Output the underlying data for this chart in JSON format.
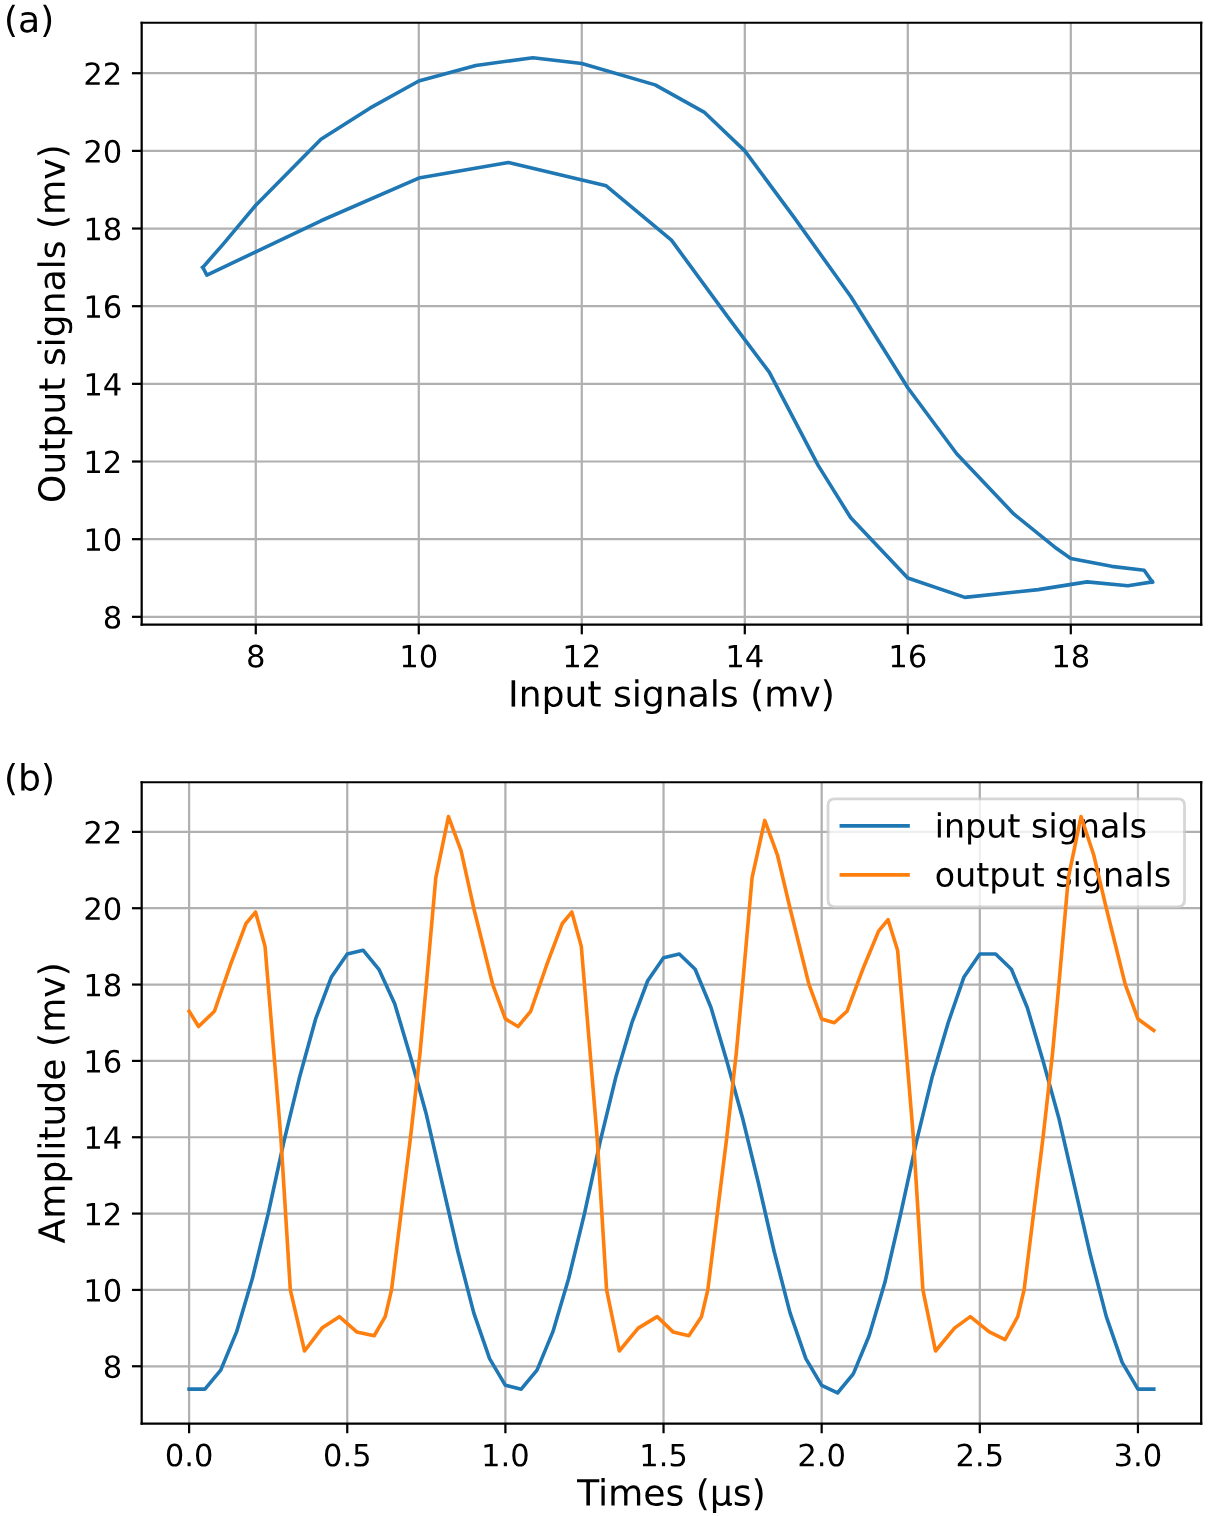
{
  "chart_data": [
    {
      "type": "line",
      "title": "(a)",
      "xlabel": "Input signals (mv)",
      "ylabel": "Output signals (mv)",
      "xlim": [
        6.6,
        19.6
      ],
      "ylim": [
        7.8,
        23.3
      ],
      "xticks": [
        8,
        10,
        12,
        14,
        16,
        18
      ],
      "yticks": [
        8,
        10,
        12,
        14,
        16,
        18,
        20,
        22
      ],
      "grid": true,
      "line_style": "solid",
      "series": [
        {
          "color": "#1f77b4",
          "x": [
            7.35,
            7.6,
            8.0,
            8.8,
            9.4,
            10.0,
            10.7,
            11.4,
            12.0,
            12.9,
            13.5,
            14.0,
            14.6,
            15.3,
            16.0,
            16.6,
            17.3,
            17.8,
            18.0,
            18.5,
            18.9,
            19.0
          ],
          "values": [
            17.0,
            17.6,
            18.6,
            20.3,
            21.1,
            21.8,
            22.2,
            22.4,
            22.25,
            21.7,
            21.0,
            20.0,
            18.3,
            16.25,
            13.9,
            12.2,
            10.65,
            9.8,
            9.5,
            9.3,
            9.2,
            8.9
          ]
        },
        {
          "color": "#1f77b4",
          "x": [
            7.35,
            7.4,
            8.0,
            8.8,
            10.0,
            11.1,
            12.3,
            13.1,
            13.8,
            14.3,
            14.9,
            15.3,
            16.0,
            16.7,
            17.6,
            18.2,
            18.7,
            19.0
          ],
          "values": [
            17.0,
            16.8,
            17.4,
            18.2,
            19.3,
            19.7,
            19.1,
            17.7,
            15.7,
            14.3,
            11.9,
            10.55,
            9.0,
            8.5,
            8.7,
            8.9,
            8.8,
            8.9
          ]
        }
      ]
    },
    {
      "type": "line",
      "title": "(b)",
      "xlabel": "Times (µs)",
      "ylabel": "Amplitude (mv)",
      "xlim": [
        -0.15,
        3.2
      ],
      "ylim": [
        6.5,
        23.3
      ],
      "xticks": [
        {
          "value": 0,
          "label": "0.0"
        },
        0.5,
        {
          "value": 1,
          "label": "1.0"
        },
        1.5,
        {
          "value": 2,
          "label": "2.0"
        },
        2.5,
        {
          "value": 3,
          "label": "3.0"
        }
      ],
      "yticks": [
        8,
        10,
        12,
        14,
        16,
        18,
        20,
        22
      ],
      "grid": true,
      "legend": "top right",
      "line_style": "solid",
      "series": [
        {
          "name": "input signals",
          "color": "#1f77b4",
          "x": [
            0.0,
            0.05,
            0.1,
            0.15,
            0.2,
            0.25,
            0.3,
            0.35,
            0.4,
            0.45,
            0.5,
            0.55,
            0.6,
            0.65,
            0.7,
            0.75,
            0.8,
            0.85,
            0.9,
            0.95,
            1.0,
            1.05,
            1.1,
            1.15,
            1.2,
            1.25,
            1.3,
            1.35,
            1.4,
            1.45,
            1.5,
            1.55,
            1.6,
            1.65,
            1.7,
            1.75,
            1.8,
            1.85,
            1.9,
            1.95,
            2.0,
            2.05,
            2.1,
            2.15,
            2.2,
            2.25,
            2.3,
            2.35,
            2.4,
            2.45,
            2.5,
            2.55,
            2.6,
            2.65,
            2.7,
            2.75,
            2.8,
            2.85,
            2.9,
            2.95,
            3.0,
            3.05
          ],
          "values": [
            7.4,
            7.4,
            7.9,
            8.9,
            10.3,
            12.0,
            13.9,
            15.6,
            17.1,
            18.2,
            18.8,
            18.9,
            18.4,
            17.5,
            16.1,
            14.6,
            12.8,
            11.0,
            9.4,
            8.2,
            7.5,
            7.4,
            7.9,
            8.9,
            10.3,
            12.0,
            13.9,
            15.6,
            17.0,
            18.1,
            18.7,
            18.8,
            18.4,
            17.4,
            16.0,
            14.5,
            12.8,
            11.0,
            9.4,
            8.2,
            7.5,
            7.3,
            7.8,
            8.8,
            10.2,
            12.0,
            13.9,
            15.6,
            17.0,
            18.2,
            18.8,
            18.8,
            18.4,
            17.4,
            16.0,
            14.5,
            12.7,
            10.9,
            9.3,
            8.1,
            7.4,
            7.4
          ]
        },
        {
          "name": "output signals",
          "color": "#ff7f0e",
          "x": [
            0.0,
            0.03,
            0.08,
            0.13,
            0.18,
            0.21,
            0.24,
            0.27,
            0.29,
            0.32,
            0.365,
            0.42,
            0.475,
            0.53,
            0.585,
            0.62,
            0.64,
            0.67,
            0.7,
            0.73,
            0.75,
            0.78,
            0.82,
            0.86,
            0.9,
            0.96,
            1.0,
            1.04,
            1.08,
            1.13,
            1.18,
            1.21,
            1.24,
            1.27,
            1.29,
            1.32,
            1.36,
            1.42,
            1.48,
            1.53,
            1.58,
            1.62,
            1.64,
            1.67,
            1.7,
            1.73,
            1.75,
            1.78,
            1.82,
            1.86,
            1.9,
            1.96,
            2.0,
            2.04,
            2.08,
            2.13,
            2.18,
            2.21,
            2.24,
            2.27,
            2.29,
            2.32,
            2.36,
            2.42,
            2.47,
            2.53,
            2.58,
            2.62,
            2.64,
            2.67,
            2.7,
            2.73,
            2.75,
            2.78,
            2.82,
            2.86,
            2.9,
            2.96,
            3.0,
            3.05
          ],
          "values": [
            17.3,
            16.9,
            17.3,
            18.5,
            19.6,
            19.9,
            19.0,
            16.0,
            14.0,
            10.0,
            8.4,
            9.0,
            9.3,
            8.9,
            8.8,
            9.3,
            10.0,
            12.0,
            14.0,
            16.2,
            18.0,
            20.8,
            22.4,
            21.5,
            20.0,
            18.0,
            17.1,
            16.9,
            17.3,
            18.5,
            19.6,
            19.9,
            19.0,
            16.0,
            14.0,
            10.0,
            8.4,
            9.0,
            9.3,
            8.9,
            8.8,
            9.3,
            10.0,
            12.0,
            14.0,
            16.2,
            18.0,
            20.8,
            22.3,
            21.4,
            20.0,
            18.0,
            17.1,
            17.0,
            17.3,
            18.4,
            19.4,
            19.7,
            18.9,
            16.0,
            14.0,
            10.0,
            8.4,
            9.0,
            9.3,
            8.9,
            8.7,
            9.3,
            10.0,
            12.0,
            14.0,
            16.2,
            18.0,
            20.8,
            22.4,
            21.4,
            20.0,
            18.0,
            17.1,
            16.8
          ]
        }
      ]
    }
  ]
}
